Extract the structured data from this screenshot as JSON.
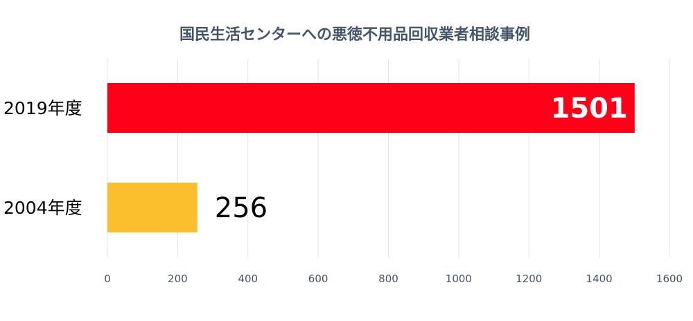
{
  "chart_data": {
    "type": "bar",
    "orientation": "horizontal",
    "title": "国民生活センターへの悪徳不用品回収業者相談事例",
    "categories": [
      "2019年度",
      "2004年度"
    ],
    "values": [
      1501,
      256
    ],
    "colors": [
      "#ff0019",
      "#fbbf2d"
    ],
    "data_labels": [
      "1501",
      "256"
    ],
    "xlim": [
      0,
      1600
    ],
    "x_ticks": [
      0,
      200,
      400,
      600,
      800,
      1000,
      1200,
      1400,
      1600
    ],
    "grid": true,
    "legend": "none"
  }
}
